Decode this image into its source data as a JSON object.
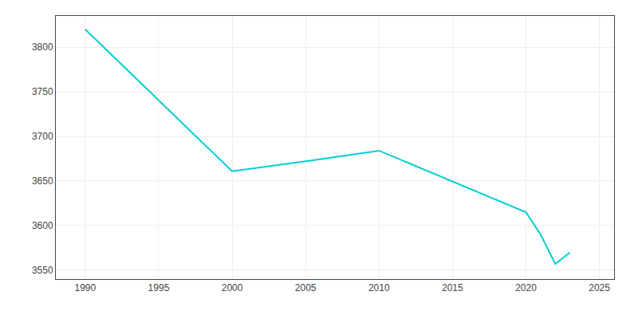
{
  "chart_data": {
    "type": "line",
    "x": [
      1990,
      2000,
      2005,
      2010,
      2020,
      2021,
      2022,
      2023
    ],
    "values": [
      3820,
      3661,
      3672,
      3684,
      3615,
      3590,
      3557,
      3570
    ],
    "color": "#00CED1",
    "xlim": [
      1988,
      2026
    ],
    "ylim": [
      3540,
      3835
    ],
    "xticks": [
      1990,
      1995,
      2000,
      2005,
      2010,
      2015,
      2020,
      2025
    ],
    "yticks": [
      3550,
      3600,
      3650,
      3700,
      3750,
      3800
    ],
    "grid": true
  }
}
